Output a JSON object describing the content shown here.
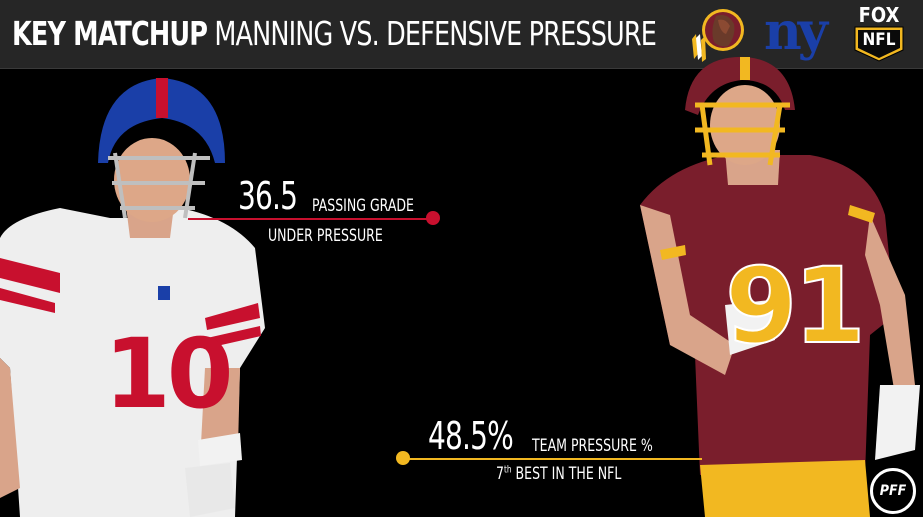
{
  "header": {
    "title_bold": "KEY MATCHUP",
    "title_rest": "MANNING VS. DEFENSIVE PRESSURE",
    "network_top": "FOX",
    "network_bottom": "NFL",
    "giants_logo": "ny"
  },
  "stats": [
    {
      "value": "36.5",
      "label_1": "PASSING GRADE",
      "label_2": "UNDER PRESSURE",
      "color": "#c8102e"
    },
    {
      "value": "48.5%",
      "label_1": "TEAM PRESSURE %",
      "label_2_pre": "7",
      "label_2_sup": "th",
      "label_2_post": "BEST IN THE NFL",
      "color": "#f2b821"
    }
  ],
  "players": {
    "left_jersey_number": "10",
    "right_jersey_number": "91"
  },
  "watermark": "PFF",
  "colors": {
    "giants_blue": "#1a3fa8",
    "giants_red": "#c8102e",
    "redskins_burgundy": "#7a1e2c",
    "redskins_gold": "#f2b821"
  }
}
